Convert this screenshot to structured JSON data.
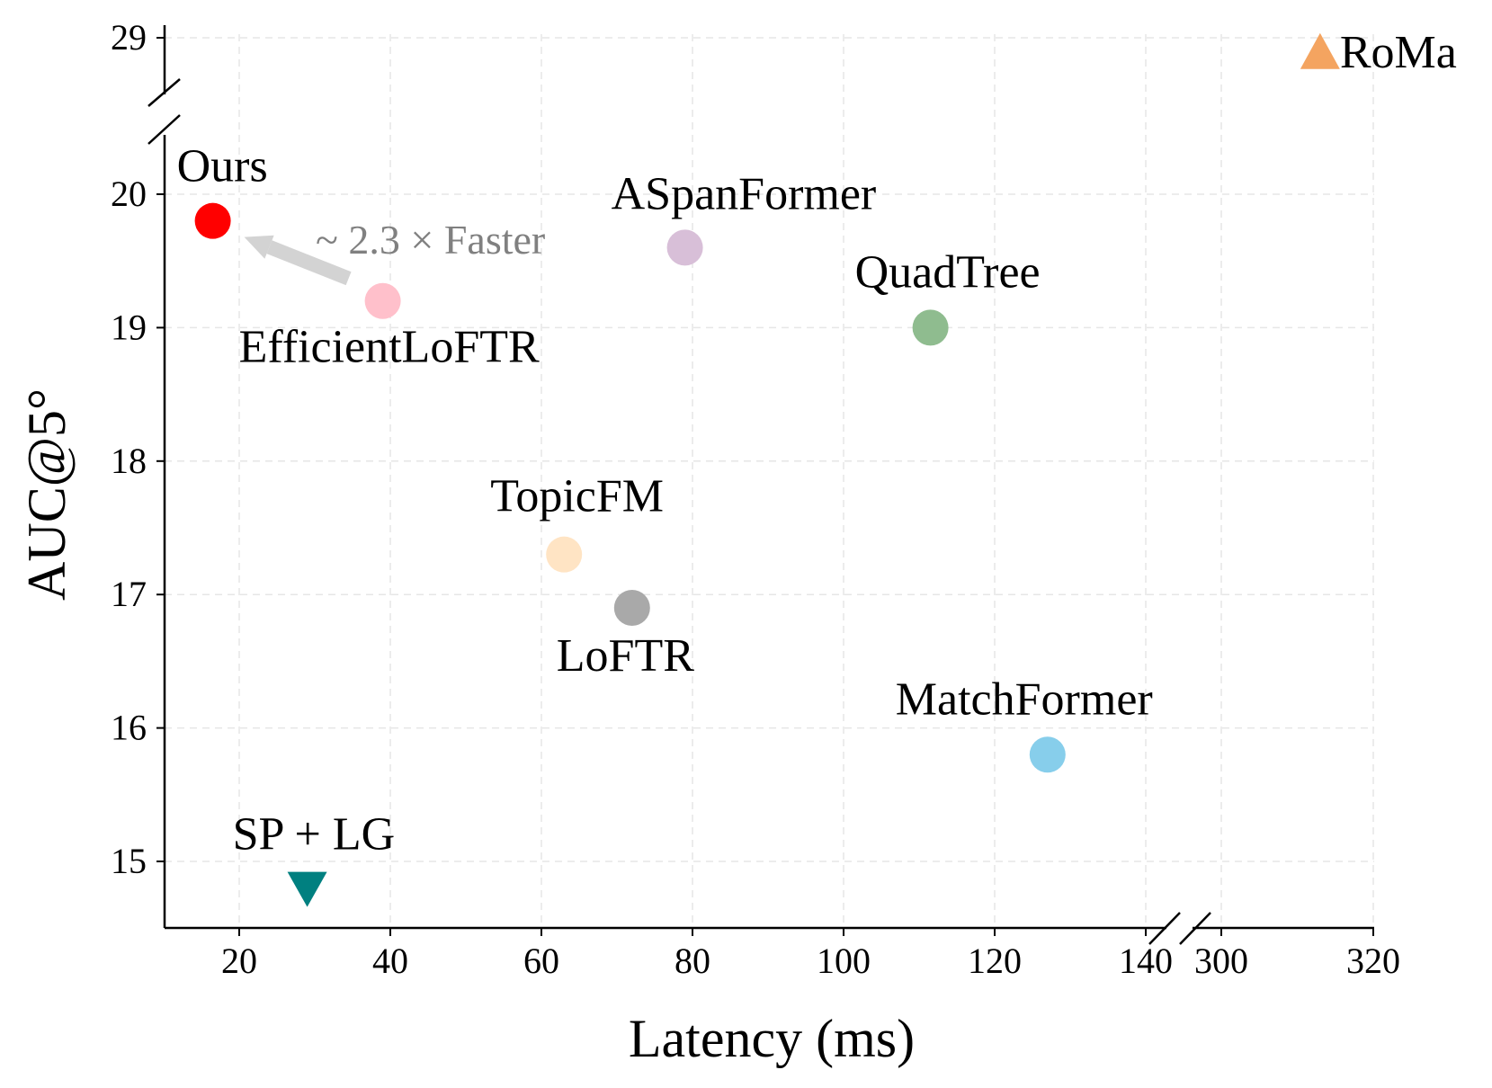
{
  "chart_data": {
    "type": "scatter",
    "xlabel": "Latency (ms)",
    "ylabel": "AUC@5°",
    "x_ticks": [
      "20",
      "40",
      "60",
      "80",
      "100",
      "120",
      "140",
      "300",
      "320"
    ],
    "y_ticks": [
      "15",
      "16",
      "17",
      "18",
      "19",
      "20",
      "29"
    ],
    "xlim_main": [
      10,
      143
    ],
    "xlim_broken": [
      297,
      321
    ],
    "ylim_main": [
      14.5,
      20.5
    ],
    "ylim_broken": [
      28.5,
      29.2
    ],
    "grid": true,
    "points": [
      {
        "name": "Ours",
        "x": 16.5,
        "y": 19.8,
        "marker": "circle",
        "color": "#ff0000"
      },
      {
        "name": "EfficientLoFTR",
        "x": 39,
        "y": 19.2,
        "marker": "circle",
        "color": "#ffc0cb"
      },
      {
        "name": "ASpanFormer",
        "x": 79,
        "y": 19.6,
        "marker": "circle",
        "color": "#d8bfd8"
      },
      {
        "name": "QuadTree",
        "x": 111.5,
        "y": 19.0,
        "marker": "circle",
        "color": "#8fbc8f"
      },
      {
        "name": "TopicFM",
        "x": 63,
        "y": 17.3,
        "marker": "circle",
        "color": "#ffe4c4"
      },
      {
        "name": "LoFTR",
        "x": 72,
        "y": 16.9,
        "marker": "circle",
        "color": "#a9a9a9"
      },
      {
        "name": "MatchFormer",
        "x": 127,
        "y": 15.8,
        "marker": "circle",
        "color": "#87ceeb"
      },
      {
        "name": "SP + LG",
        "x": 29,
        "y": 14.8,
        "marker": "triangle-down",
        "color": "#008080"
      },
      {
        "name": "RoMa",
        "x": 313,
        "y": 28.9,
        "marker": "triangle-up",
        "color": "#f4a460"
      }
    ],
    "annotations": [
      {
        "text": "~ 2.3 × Faster",
        "from": "EfficientLoFTR",
        "to": "Ours"
      }
    ]
  }
}
